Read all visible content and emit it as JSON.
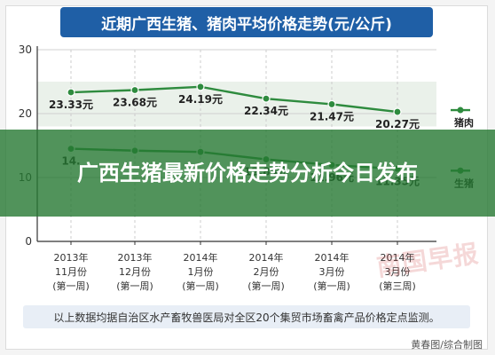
{
  "chart_data": {
    "type": "line",
    "title": "近期广西生猪、猪肉平均价格走势(元/公斤)",
    "categories": [
      [
        "2013年",
        "11月份",
        "(第一周)"
      ],
      [
        "2013年",
        "12月份",
        "(第一周)"
      ],
      [
        "2014年",
        "1月份",
        "(第一周)"
      ],
      [
        "2014年",
        "2月份",
        "(第一周)"
      ],
      [
        "2014年",
        "3月份",
        "(第一周)"
      ],
      [
        "2014年",
        "3月份",
        "(第三周)"
      ]
    ],
    "ylim": [
      0,
      30
    ],
    "yticks": [
      "0",
      "10",
      "20",
      "30"
    ],
    "series": [
      {
        "name": "猪肉",
        "values": [
          23.33,
          23.68,
          24.19,
          22.34,
          21.47,
          20.27
        ],
        "labels": [
          "23.33元",
          "23.68元",
          "24.19元",
          "22.34元",
          "21.47元",
          "20.27元"
        ],
        "color": "#2e8b3e"
      },
      {
        "name": "生猪",
        "values": [
          14.5,
          14.2,
          14.0,
          12.84,
          11.96,
          11.35
        ],
        "labels": [
          "14.",
          "",
          "",
          "12.84元",
          "11.96元",
          "11.35元"
        ],
        "color": "#2e8b3e"
      }
    ],
    "grid": true,
    "legend": "right"
  },
  "overlay": {
    "headline": "广西生猪最新价格走势分析今日发布"
  },
  "footnote": "以上数据均据自治区水产畜牧兽医局对全区20个集贸市场畜禽产品价格定点监测。",
  "credit": "黄春图/综合制图",
  "watermark": "南国早报",
  "colors": {
    "title_bg": "#1f5fa6",
    "overlay_bg": "#267832",
    "axis": "#333333",
    "grid": "#d0d0d0"
  }
}
